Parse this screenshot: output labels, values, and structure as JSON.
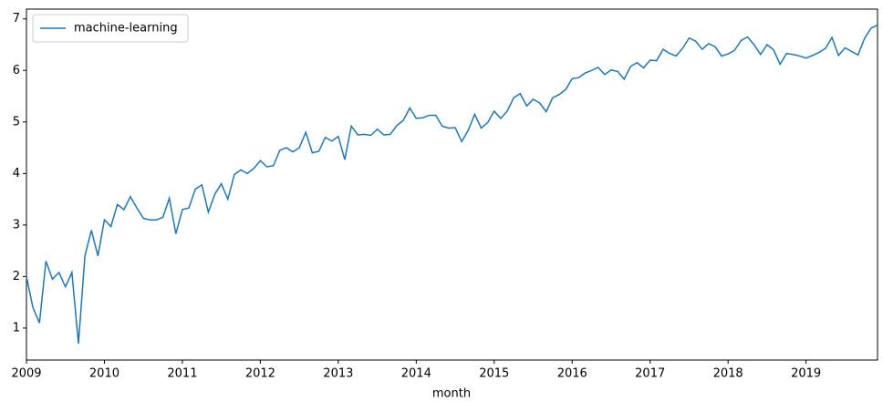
{
  "chart_data": {
    "type": "line",
    "x_label": "month",
    "x": [
      2009,
      2009.083,
      2009.167,
      2009.25,
      2009.333,
      2009.417,
      2009.5,
      2009.583,
      2009.667,
      2009.75,
      2009.833,
      2009.917,
      2010,
      2010.083,
      2010.167,
      2010.25,
      2010.333,
      2010.417,
      2010.5,
      2010.583,
      2010.667,
      2010.75,
      2010.833,
      2010.917,
      2011,
      2011.083,
      2011.167,
      2011.25,
      2011.333,
      2011.417,
      2011.5,
      2011.583,
      2011.667,
      2011.75,
      2011.833,
      2011.917,
      2012,
      2012.083,
      2012.167,
      2012.25,
      2012.333,
      2012.417,
      2012.5,
      2012.583,
      2012.667,
      2012.75,
      2012.833,
      2012.917,
      2013,
      2013.083,
      2013.167,
      2013.25,
      2013.333,
      2013.417,
      2013.5,
      2013.583,
      2013.667,
      2013.75,
      2013.833,
      2013.917,
      2014,
      2014.083,
      2014.167,
      2014.25,
      2014.333,
      2014.417,
      2014.5,
      2014.583,
      2014.667,
      2014.75,
      2014.833,
      2014.917,
      2015,
      2015.083,
      2015.167,
      2015.25,
      2015.333,
      2015.417,
      2015.5,
      2015.583,
      2015.667,
      2015.75,
      2015.833,
      2015.917,
      2016,
      2016.083,
      2016.167,
      2016.25,
      2016.333,
      2016.417,
      2016.5,
      2016.583,
      2016.667,
      2016.75,
      2016.833,
      2016.917,
      2017,
      2017.083,
      2017.167,
      2017.25,
      2017.333,
      2017.417,
      2017.5,
      2017.583,
      2017.667,
      2017.75,
      2017.833,
      2017.917,
      2018,
      2018.083,
      2018.167,
      2018.25,
      2018.333,
      2018.417,
      2018.5,
      2018.583,
      2018.667,
      2018.75,
      2018.833,
      2018.917,
      2019,
      2019.083,
      2019.167,
      2019.25,
      2019.333,
      2019.417,
      2019.5,
      2019.583,
      2019.667,
      2019.75,
      2019.833,
      2019.917
    ],
    "series": [
      {
        "name": "machine-learning",
        "color": "#1f77b4",
        "values": [
          2.0,
          1.4,
          1.1,
          2.3,
          1.95,
          2.08,
          1.8,
          2.08,
          0.7,
          2.4,
          2.9,
          2.4,
          3.1,
          2.97,
          3.4,
          3.3,
          3.55,
          3.33,
          3.13,
          3.1,
          3.1,
          3.15,
          3.52,
          2.83,
          3.3,
          3.33,
          3.7,
          3.78,
          3.25,
          3.6,
          3.8,
          3.5,
          3.98,
          4.07,
          4.0,
          4.1,
          4.25,
          4.13,
          4.15,
          4.45,
          4.5,
          4.42,
          4.5,
          4.8,
          4.4,
          4.43,
          4.7,
          4.63,
          4.72,
          4.27,
          4.92,
          4.75,
          4.76,
          4.74,
          4.86,
          4.75,
          4.76,
          4.93,
          5.03,
          5.27,
          5.07,
          5.08,
          5.13,
          5.13,
          4.92,
          4.88,
          4.89,
          4.62,
          4.84,
          5.15,
          4.88,
          4.99,
          5.21,
          5.07,
          5.21,
          5.47,
          5.55,
          5.31,
          5.44,
          5.37,
          5.2,
          5.47,
          5.53,
          5.63,
          5.84,
          5.86,
          5.95,
          6.0,
          6.06,
          5.92,
          6.01,
          5.98,
          5.83,
          6.08,
          6.15,
          6.05,
          6.2,
          6.19,
          6.41,
          6.33,
          6.28,
          6.43,
          6.63,
          6.57,
          6.41,
          6.52,
          6.46,
          6.28,
          6.32,
          6.39,
          6.58,
          6.65,
          6.5,
          6.31,
          6.5,
          6.4,
          6.12,
          6.33,
          6.31,
          6.28,
          6.24,
          6.29,
          6.35,
          6.43,
          6.64,
          6.29,
          6.44,
          6.37,
          6.3,
          6.62,
          6.82,
          6.88
        ]
      }
    ],
    "xlim": [
      2009,
      2019.917
    ],
    "xticks": [
      2009,
      2010,
      2011,
      2012,
      2013,
      2014,
      2015,
      2016,
      2017,
      2018,
      2019
    ],
    "ylim": [
      0.38,
      7.19
    ],
    "yticks": [
      1,
      2,
      3,
      4,
      5,
      6,
      7
    ],
    "legend": "upper left",
    "grid": false
  }
}
